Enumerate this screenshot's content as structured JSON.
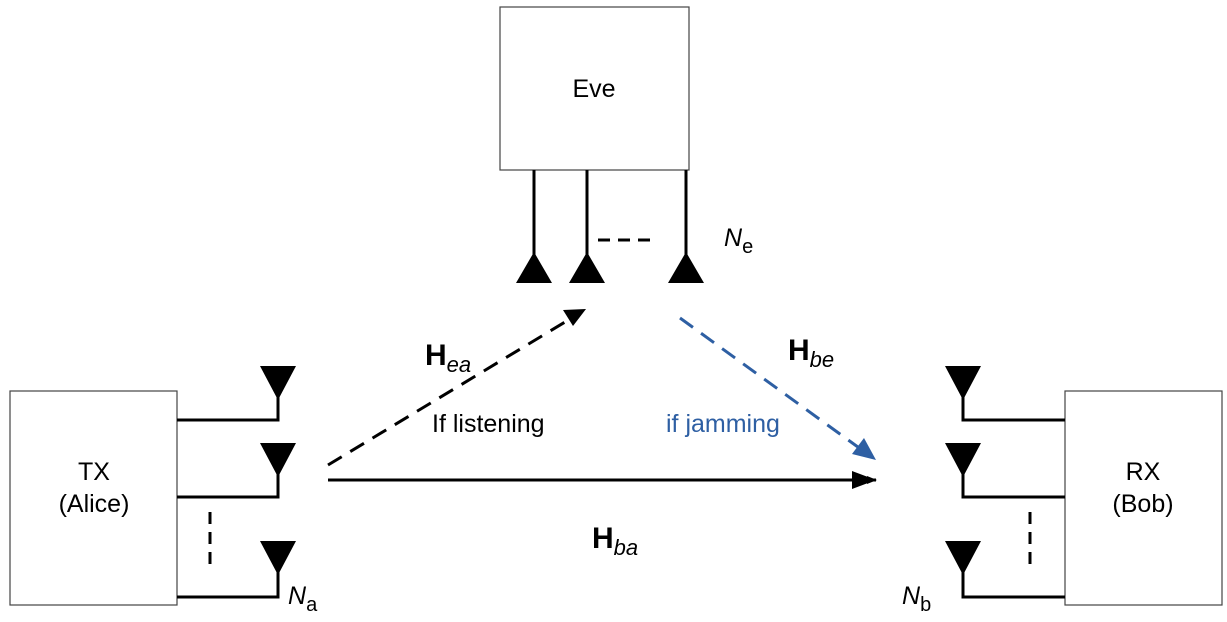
{
  "nodes": {
    "eve": {
      "label": "Eve"
    },
    "alice": {
      "lines": [
        "TX",
        "(Alice)"
      ]
    },
    "bob": {
      "lines": [
        "RX",
        "(Bob)"
      ]
    }
  },
  "antennas": [
    {
      "symbol": "N",
      "subscript": "e"
    },
    {
      "symbol": "N",
      "subscript": "a"
    },
    {
      "symbol": "N",
      "subscript": "b"
    }
  ],
  "channels": [
    {
      "symbol": "H",
      "subscript": "ea",
      "note": "If listening"
    },
    {
      "symbol": "H",
      "subscript": "be",
      "note": "if jamming"
    },
    {
      "symbol": "H",
      "subscript": "ba"
    }
  ]
}
